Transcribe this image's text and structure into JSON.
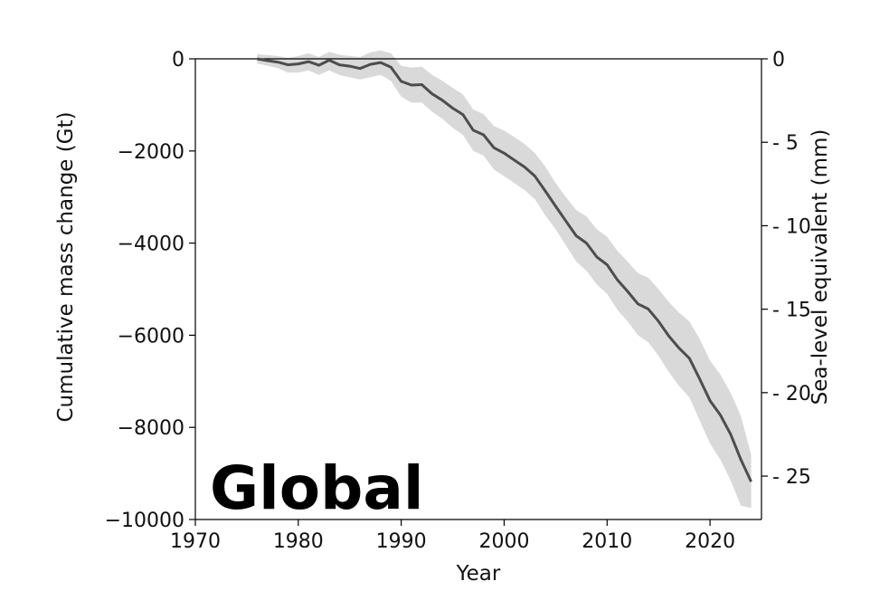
{
  "chart_data": {
    "type": "line",
    "title": "Global",
    "xlabel": "Year",
    "ylabel": "Cumulative mass change (Gt)",
    "y2label": "Sea-level equivalent (mm)",
    "xlim": [
      1970,
      2025
    ],
    "ylim": [
      -10000,
      0
    ],
    "y2lim": [
      0,
      27.6
    ],
    "x_ticks": [
      1970,
      1980,
      1990,
      2000,
      2010,
      2020
    ],
    "y_ticks": [
      0,
      -2000,
      -4000,
      -6000,
      -8000,
      -10000
    ],
    "y2_ticks": [
      0,
      5,
      10,
      15,
      20,
      25
    ],
    "grid": false,
    "zero_line": true,
    "colors": {
      "line": "#4d4d4d",
      "band": "#d9d9d9",
      "zero_line": "#000000",
      "axes": "#000000"
    },
    "series": [
      {
        "x": [
          1976,
          1977,
          1978,
          1979,
          1980,
          1981,
          1982,
          1983,
          1984,
          1985,
          1986,
          1987,
          1988,
          1989,
          1990,
          1991,
          1992,
          1993,
          1994,
          1995,
          1996,
          1997,
          1998,
          1999,
          2000,
          2001,
          2002,
          2003,
          2004,
          2005,
          2006,
          2007,
          2008,
          2009,
          2010,
          2011,
          2012,
          2013,
          2014,
          2015,
          2016,
          2017,
          2018,
          2019,
          2020,
          2021,
          2022,
          2023,
          2024
        ],
        "values": [
          0,
          -40,
          -70,
          -130,
          -110,
          -60,
          -140,
          -30,
          -130,
          -160,
          -210,
          -120,
          -80,
          -180,
          -490,
          -570,
          -560,
          -760,
          -900,
          -1070,
          -1210,
          -1550,
          -1650,
          -1930,
          -2050,
          -2200,
          -2350,
          -2550,
          -2870,
          -3200,
          -3520,
          -3840,
          -4000,
          -4300,
          -4470,
          -4800,
          -5050,
          -5320,
          -5430,
          -5700,
          -6020,
          -6280,
          -6500,
          -6950,
          -7420,
          -7730,
          -8150,
          -8700,
          -9180
        ],
        "lower": [
          -100,
          -150,
          -200,
          -300,
          -300,
          -250,
          -350,
          -250,
          -350,
          -400,
          -450,
          -400,
          -350,
          -480,
          -820,
          -950,
          -950,
          -1150,
          -1300,
          -1500,
          -1650,
          -2000,
          -2100,
          -2400,
          -2550,
          -2700,
          -2850,
          -3050,
          -3400,
          -3700,
          -4050,
          -4400,
          -4600,
          -4900,
          -5100,
          -5450,
          -5700,
          -6000,
          -6150,
          -6450,
          -6800,
          -7100,
          -7350,
          -7850,
          -8350,
          -8700,
          -9150,
          -9700,
          -9750
        ],
        "upper": [
          100,
          80,
          60,
          20,
          60,
          120,
          40,
          150,
          90,
          60,
          40,
          140,
          180,
          120,
          -150,
          -190,
          -170,
          -350,
          -480,
          -630,
          -770,
          -1100,
          -1200,
          -1460,
          -1560,
          -1700,
          -1850,
          -2050,
          -2340,
          -2700,
          -3000,
          -3280,
          -3420,
          -3700,
          -3860,
          -4170,
          -4400,
          -4650,
          -4750,
          -5000,
          -5280,
          -5510,
          -5700,
          -6080,
          -6550,
          -6850,
          -7250,
          -7750,
          -8600
        ]
      }
    ]
  }
}
